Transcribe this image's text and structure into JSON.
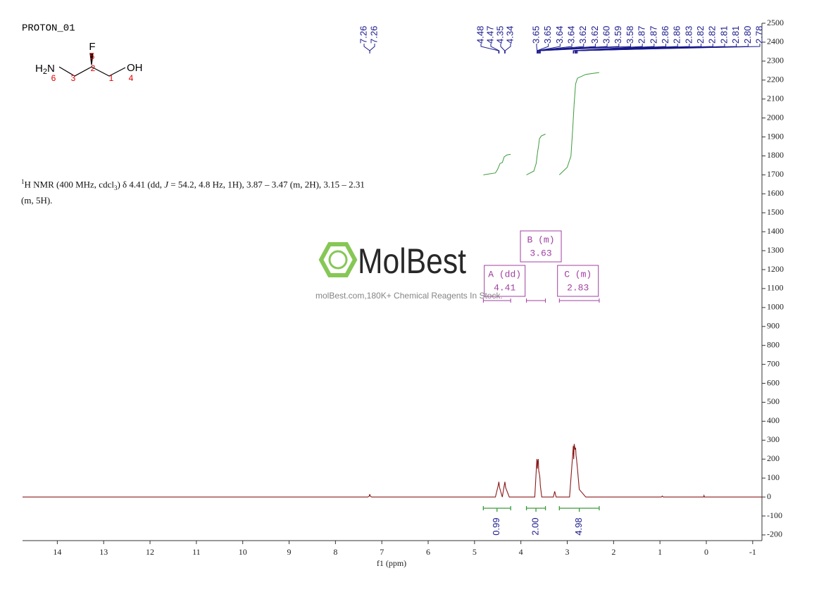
{
  "header": {
    "title": "PROTON_01",
    "description": [
      "1",
      "H NMR (400 MHz, cdcl",
      "3",
      ") δ 4.41 (dd, ",
      "J",
      " = 54.2, 4.8 Hz, 1H), 3.87 – 3.47 (m, 2H), 3.15 – 2.31",
      "(m, 5H)."
    ]
  },
  "molecule": {
    "fluorine": "F",
    "amine_h": "H",
    "amine_sub": "2",
    "amine_n": "N",
    "hydroxyl": "OH",
    "numbers": [
      "6",
      "3",
      "2",
      "1",
      "4",
      "5"
    ]
  },
  "watermark": {
    "brand": "MolBest",
    "tagline": "molBest.com,180K+ Chemical Reagents In Stock."
  },
  "chart_data": {
    "type": "nmr",
    "xlabel": "f1 (ppm)",
    "xlim": [
      14.75,
      -1.2
    ],
    "xticks": [
      14,
      13,
      12,
      11,
      10,
      9,
      8,
      7,
      6,
      5,
      4,
      3,
      2,
      1,
      0,
      -1
    ],
    "ylim": [
      -230,
      2500
    ],
    "yticks": [
      -200,
      -100,
      0,
      100,
      200,
      300,
      400,
      500,
      600,
      700,
      800,
      900,
      1000,
      1100,
      1200,
      1300,
      1400,
      1500,
      1600,
      1700,
      1800,
      1900,
      2000,
      2100,
      2200,
      2300,
      2400,
      2500
    ],
    "series": [
      {
        "color": "#8b1a1a",
        "x": [
          14.75,
          7.3,
          7.27,
          7.26,
          7.25,
          7.22,
          4.55,
          4.49,
          4.475,
          4.46,
          4.4,
          4.36,
          4.345,
          4.33,
          4.25,
          3.7,
          3.66,
          3.655,
          3.645,
          3.635,
          3.625,
          3.615,
          3.6,
          3.59,
          3.58,
          3.55,
          3.3,
          3.27,
          3.24,
          2.95,
          2.88,
          2.87,
          2.86,
          2.85,
          2.83,
          2.82,
          2.81,
          2.8,
          2.78,
          2.74,
          2.6,
          0.97,
          0.95,
          0.93,
          0.06,
          0.05,
          0.04,
          -1.2
        ],
        "values": [
          0,
          0,
          5,
          15,
          5,
          0,
          0,
          60,
          80,
          50,
          0,
          60,
          80,
          50,
          0,
          0,
          180,
          200,
          150,
          190,
          200,
          140,
          120,
          100,
          60,
          0,
          0,
          30,
          0,
          0,
          230,
          270,
          200,
          280,
          250,
          260,
          220,
          200,
          150,
          40,
          0,
          0,
          5,
          0,
          0,
          8,
          0,
          0
        ]
      }
    ],
    "peaks": [
      7.26,
      7.26,
      4.48,
      4.47,
      4.35,
      4.34,
      3.65,
      3.65,
      3.64,
      3.64,
      3.62,
      3.62,
      {
        "value": 3.6,
        "label": "3.60"
      },
      3.59,
      3.58,
      2.87,
      2.87,
      2.86,
      2.86,
      2.83,
      2.82,
      2.82,
      2.81,
      2.81,
      {
        "value": 2.8,
        "label": "2.80"
      },
      2.78
    ],
    "peak_color": "#1a1a8c",
    "integrals": {
      "ranges": [
        [
          4.81,
          4.22
        ],
        [
          3.88,
          3.47
        ],
        [
          3.17,
          2.31
        ]
      ],
      "values": [
        0.99,
        2,
        4.98
      ],
      "value_labels": [
        "0.99",
        "2.00",
        "4.98"
      ],
      "color": "#3c9a3c"
    },
    "integral_curves": [
      {
        "x": [
          4.81,
          4.55,
          4.5,
          4.45,
          4.4,
          4.36,
          4.3,
          4.22
        ],
        "values": [
          1700,
          1710,
          1730,
          1760,
          1765,
          1795,
          1805,
          1808
        ]
      },
      {
        "x": [
          3.88,
          3.72,
          3.67,
          3.64,
          3.62,
          3.6,
          3.56,
          3.47
        ],
        "values": [
          1700,
          1720,
          1760,
          1820,
          1850,
          1890,
          1905,
          1915
        ]
      },
      {
        "x": [
          3.17,
          3.0,
          2.92,
          2.88,
          2.85,
          2.82,
          2.78,
          2.6,
          2.31
        ],
        "values": [
          1700,
          1740,
          1800,
          1950,
          2080,
          2180,
          2210,
          2230,
          2240
        ]
      }
    ],
    "multiplets": {
      "names": [
        "A (dd)",
        "B (m)",
        "C (m)"
      ],
      "shifts": [
        4.41,
        3.63,
        2.83
      ],
      "color": "#a040a0"
    }
  }
}
